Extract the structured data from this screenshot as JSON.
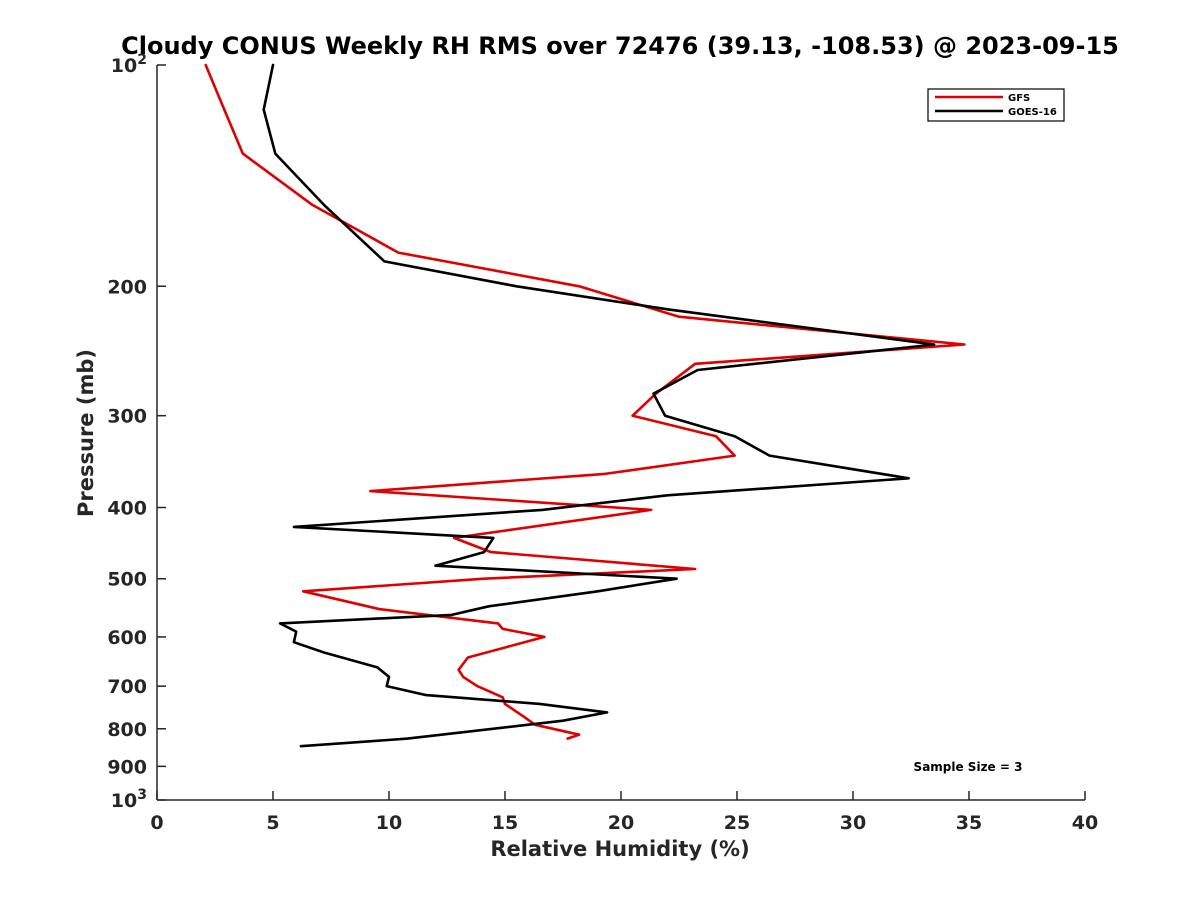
{
  "chart_data": {
    "type": "line",
    "title": "Cloudy CONUS Weekly RH RMS over 72476 (39.13, -108.53) @ 2023-09-15",
    "xlabel": "Relative Humidity (%)",
    "ylabel": "Pressure (mb)",
    "xlim": [
      0,
      40
    ],
    "ylim": [
      100,
      1000
    ],
    "y_scale": "log",
    "y_reversed": true,
    "grid": false,
    "legend_position": "top-right",
    "x_ticks": [
      0,
      5,
      10,
      15,
      20,
      25,
      30,
      35,
      40
    ],
    "y_ticks": [
      {
        "value": 100,
        "base": "10",
        "exp": "2"
      },
      {
        "value": 200,
        "label": "200"
      },
      {
        "value": 300,
        "label": "300"
      },
      {
        "value": 400,
        "label": "400"
      },
      {
        "value": 500,
        "label": "500"
      },
      {
        "value": 600,
        "label": "600"
      },
      {
        "value": 700,
        "label": "700"
      },
      {
        "value": 800,
        "label": "800"
      },
      {
        "value": 900,
        "label": "900"
      },
      {
        "value": 1000,
        "base": "10",
        "exp": "3"
      }
    ],
    "annotation": "Sample Size = 3",
    "series": [
      {
        "name": "GFS",
        "color": "#e00000",
        "points": [
          [
            2.1,
            100
          ],
          [
            2.9,
            115
          ],
          [
            3.7,
            132
          ],
          [
            6.7,
            155
          ],
          [
            10.4,
            180
          ],
          [
            18.2,
            200
          ],
          [
            22.5,
            220
          ],
          [
            34.8,
            240
          ],
          [
            23.2,
            255
          ],
          [
            21.5,
            280
          ],
          [
            20.5,
            300
          ],
          [
            24.1,
            320
          ],
          [
            24.9,
            340
          ],
          [
            19.3,
            360
          ],
          [
            9.2,
            380
          ],
          [
            21.3,
            403
          ],
          [
            12.8,
            440
          ],
          [
            14.4,
            460
          ],
          [
            23.2,
            485
          ],
          [
            14.1,
            500
          ],
          [
            6.3,
            520
          ],
          [
            9.6,
            550
          ],
          [
            14.7,
            575
          ],
          [
            14.9,
            585
          ],
          [
            16.7,
            600
          ],
          [
            13.4,
            640
          ],
          [
            13.0,
            665
          ],
          [
            13.2,
            680
          ],
          [
            13.8,
            700
          ],
          [
            14.9,
            725
          ],
          [
            15.0,
            740
          ],
          [
            15.8,
            770
          ],
          [
            16.3,
            790
          ],
          [
            18.2,
            815
          ],
          [
            17.7,
            825
          ]
        ]
      },
      {
        "name": "GOES-16",
        "color": "#000000",
        "points": [
          [
            5.0,
            100
          ],
          [
            4.6,
            115
          ],
          [
            5.1,
            132
          ],
          [
            7.2,
            155
          ],
          [
            9.8,
            185
          ],
          [
            15.5,
            200
          ],
          [
            22.0,
            215
          ],
          [
            33.5,
            240
          ],
          [
            23.3,
            260
          ],
          [
            21.4,
            280
          ],
          [
            21.9,
            300
          ],
          [
            24.9,
            320
          ],
          [
            26.4,
            340
          ],
          [
            32.4,
            365
          ],
          [
            22.0,
            385
          ],
          [
            16.6,
            403
          ],
          [
            5.9,
            425
          ],
          [
            14.5,
            440
          ],
          [
            14.1,
            460
          ],
          [
            12.0,
            480
          ],
          [
            22.4,
            500
          ],
          [
            19.0,
            520
          ],
          [
            14.3,
            545
          ],
          [
            12.7,
            560
          ],
          [
            5.3,
            575
          ],
          [
            6.0,
            590
          ],
          [
            5.9,
            610
          ],
          [
            7.2,
            630
          ],
          [
            9.5,
            660
          ],
          [
            10.0,
            680
          ],
          [
            9.9,
            700
          ],
          [
            11.6,
            720
          ],
          [
            16.5,
            740
          ],
          [
            19.4,
            760
          ],
          [
            17.5,
            780
          ],
          [
            10.8,
            825
          ],
          [
            6.2,
            845
          ]
        ]
      }
    ]
  }
}
